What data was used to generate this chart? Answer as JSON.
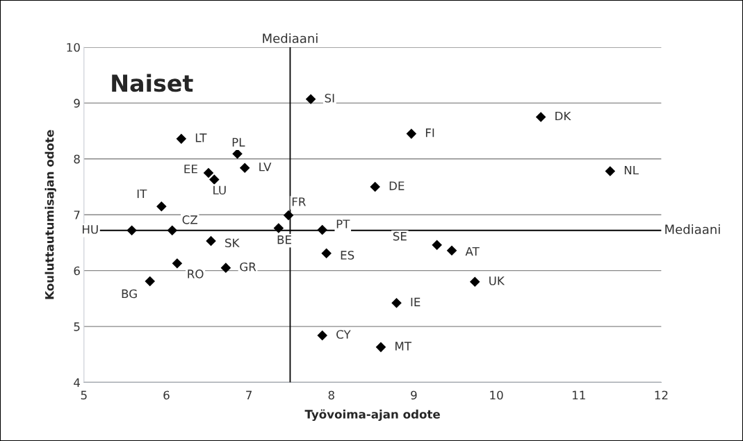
{
  "chart_data": {
    "type": "scatter",
    "title": "Naiset",
    "xlabel": "Työvoima-ajan odote",
    "ylabel": "Kouluttautumisajan odote",
    "series": [
      {
        "color": "#000000",
        "x": [
          7.75,
          10.54,
          8.97,
          8.53,
          11.38,
          6.18,
          6.86,
          6.95,
          6.51,
          6.58,
          5.94,
          7.48,
          5.58,
          6.07,
          7.36,
          7.89,
          6.54,
          7.94,
          6.13,
          5.8,
          6.72,
          9.28,
          9.46,
          9.74,
          8.79,
          7.89,
          8.6
        ],
        "values": [
          9.07,
          8.75,
          8.45,
          7.5,
          7.78,
          8.36,
          8.09,
          7.84,
          7.75,
          7.63,
          7.15,
          6.99,
          6.72,
          6.72,
          6.76,
          6.73,
          6.53,
          6.31,
          6.13,
          5.81,
          6.05,
          6.46,
          6.36,
          5.8,
          5.42,
          4.84,
          4.63
        ]
      }
    ],
    "annotations": [
      {
        "text": "SI",
        "x": 7.75,
        "y": 9.07
      },
      {
        "text": "DK",
        "x": 10.54,
        "y": 8.75
      },
      {
        "text": "FI",
        "x": 8.97,
        "y": 8.45
      },
      {
        "text": "DE",
        "x": 8.53,
        "y": 7.5
      },
      {
        "text": "NL",
        "x": 11.38,
        "y": 7.78
      },
      {
        "text": "LT",
        "x": 6.18,
        "y": 8.36
      },
      {
        "text": "PL",
        "x": 6.86,
        "y": 8.09
      },
      {
        "text": "LV",
        "x": 6.95,
        "y": 7.84
      },
      {
        "text": "EE",
        "x": 6.51,
        "y": 7.75
      },
      {
        "text": "LU",
        "x": 6.58,
        "y": 7.63
      },
      {
        "text": "IT",
        "x": 5.94,
        "y": 7.15
      },
      {
        "text": "FR",
        "x": 7.48,
        "y": 6.99
      },
      {
        "text": "HU",
        "x": 5.58,
        "y": 6.72
      },
      {
        "text": "CZ",
        "x": 6.07,
        "y": 6.72
      },
      {
        "text": "BE",
        "x": 7.36,
        "y": 6.76
      },
      {
        "text": "PT",
        "x": 7.89,
        "y": 6.73
      },
      {
        "text": "SK",
        "x": 6.54,
        "y": 6.53
      },
      {
        "text": "ES",
        "x": 7.94,
        "y": 6.31
      },
      {
        "text": "RO",
        "x": 6.13,
        "y": 6.13
      },
      {
        "text": "BG",
        "x": 5.8,
        "y": 5.81
      },
      {
        "text": "GR",
        "x": 6.72,
        "y": 6.05
      },
      {
        "text": "SE",
        "x": 9.28,
        "y": 6.46
      },
      {
        "text": "AT",
        "x": 9.46,
        "y": 6.36
      },
      {
        "text": "UK",
        "x": 9.74,
        "y": 5.8
      },
      {
        "text": "IE",
        "x": 8.79,
        "y": 5.42
      },
      {
        "text": "CY",
        "x": 7.89,
        "y": 4.84
      },
      {
        "text": "MT",
        "x": 8.6,
        "y": 4.63
      }
    ],
    "ref_lines": [
      {
        "axis": "x",
        "value": 7.5,
        "label": "Mediaani",
        "color": "#000000"
      },
      {
        "axis": "y",
        "value": 6.72,
        "label": "Mediaani",
        "color": "#000000"
      }
    ],
    "xlim": [
      5,
      12
    ],
    "xticks": [
      5,
      6,
      7,
      8,
      9,
      10,
      11,
      12
    ],
    "ylim": [
      4,
      10
    ],
    "yticks": [
      4,
      5,
      6,
      7,
      8,
      9,
      10
    ],
    "grid": "y",
    "marker": "diamond",
    "legend": false
  }
}
